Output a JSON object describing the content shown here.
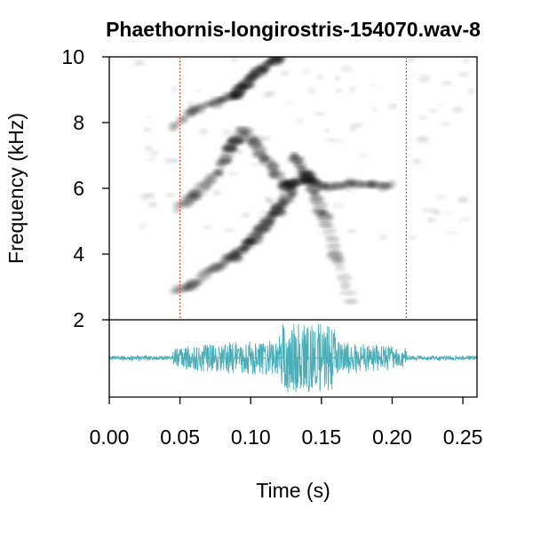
{
  "chart_data": {
    "type": "spectrogram",
    "title": "Phaethornis-longirostris-154070.wav-8",
    "xlabel": "Time (s)",
    "ylabel": "Frequency (kHz)",
    "xlim": [
      0,
      0.26
    ],
    "ylim": [
      2,
      10
    ],
    "x_ticks": [
      "0.00",
      "0.05",
      "0.10",
      "0.15",
      "0.20",
      "0.25"
    ],
    "x_tick_values": [
      0,
      0.05,
      0.1,
      0.15,
      0.2,
      0.25
    ],
    "y_ticks": [
      "2",
      "4",
      "6",
      "8",
      "10"
    ],
    "y_tick_values": [
      2,
      4,
      6,
      8,
      10
    ],
    "selection_bounds_s": [
      0.05,
      0.21
    ],
    "selection_color": "#e0533f",
    "waveform_color": "#4aaeb8",
    "spectrogram_color": "#000000",
    "grid": false,
    "legend": "none",
    "series": [
      {
        "name": "",
        "role": "lower harmonic",
        "x": [
          0.048,
          0.06,
          0.075,
          0.09,
          0.1,
          0.11,
          0.12,
          0.13
        ],
        "y": [
          2.9,
          3.1,
          3.6,
          4.0,
          4.4,
          4.9,
          5.4,
          5.9
        ]
      },
      {
        "name": "",
        "role": "fundamental",
        "x": [
          0.048,
          0.06,
          0.075,
          0.085,
          0.095,
          0.11,
          0.125,
          0.14,
          0.155,
          0.17,
          0.185,
          0.2
        ],
        "y": [
          5.4,
          5.8,
          6.4,
          7.2,
          7.8,
          6.9,
          6.1,
          6.3,
          6.0,
          6.2,
          6.1,
          6.1
        ]
      },
      {
        "name": "",
        "role": "upper harmonic",
        "x": [
          0.045,
          0.06,
          0.075,
          0.09,
          0.1,
          0.11,
          0.12
        ],
        "y": [
          7.9,
          8.4,
          8.6,
          8.9,
          9.3,
          9.7,
          10.0
        ]
      },
      {
        "name": "",
        "role": "descending sweep",
        "x": [
          0.13,
          0.14,
          0.15,
          0.16,
          0.17
        ],
        "y": [
          7.0,
          6.4,
          5.3,
          4.0,
          2.6
        ]
      }
    ]
  }
}
